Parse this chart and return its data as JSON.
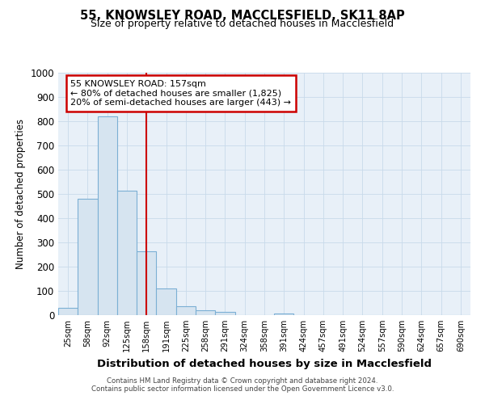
{
  "title1": "55, KNOWSLEY ROAD, MACCLESFIELD, SK11 8AP",
  "title2": "Size of property relative to detached houses in Macclesfield",
  "xlabel": "Distribution of detached houses by size in Macclesfield",
  "ylabel": "Number of detached properties",
  "footnote1": "Contains HM Land Registry data © Crown copyright and database right 2024.",
  "footnote2": "Contains public sector information licensed under the Open Government Licence v3.0.",
  "bin_labels": [
    "25sqm",
    "58sqm",
    "92sqm",
    "125sqm",
    "158sqm",
    "191sqm",
    "225sqm",
    "258sqm",
    "291sqm",
    "324sqm",
    "358sqm",
    "391sqm",
    "424sqm",
    "457sqm",
    "491sqm",
    "524sqm",
    "557sqm",
    "590sqm",
    "624sqm",
    "657sqm",
    "690sqm"
  ],
  "bar_heights": [
    30,
    480,
    820,
    515,
    265,
    110,
    38,
    20,
    12,
    0,
    0,
    8,
    0,
    0,
    0,
    0,
    0,
    0,
    0,
    0,
    0
  ],
  "bar_color": "#d6e4f0",
  "bar_edge_color": "#7bafd4",
  "bar_edge_width": 0.8,
  "vline_x_index": 4,
  "vline_color": "#cc0000",
  "annotation_line1": "55 KNOWSLEY ROAD: 157sqm",
  "annotation_line2": "← 80% of detached houses are smaller (1,825)",
  "annotation_line3": "20% of semi-detached houses are larger (443) →",
  "annotation_box_color": "#ffffff",
  "annotation_box_edge": "#cc0000",
  "ylim": [
    0,
    1000
  ],
  "yticks": [
    0,
    100,
    200,
    300,
    400,
    500,
    600,
    700,
    800,
    900,
    1000
  ],
  "grid_color": "#c8daea",
  "background_color": "#ffffff",
  "plot_bg_color": "#e8f0f8"
}
